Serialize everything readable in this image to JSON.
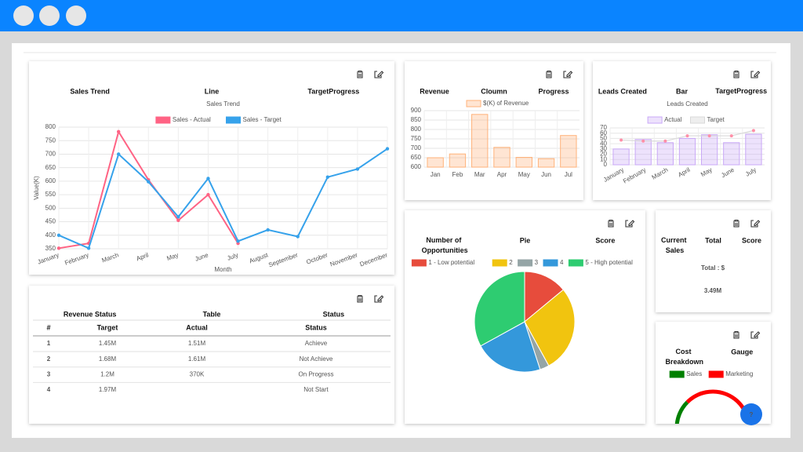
{
  "chart_data": [
    {
      "type": "line",
      "header": [
        "Sales Trend",
        "Line",
        "TargetProgress"
      ],
      "title": "Sales Trend",
      "y_label": "Value(K)",
      "x_label": "Month",
      "categories": [
        "January",
        "February",
        "March",
        "April",
        "May",
        "June",
        "July",
        "August",
        "September",
        "October",
        "November",
        "December"
      ],
      "series": [
        {
          "name": "Sales - Actual",
          "color": "#ff6384",
          "values": [
            352,
            370,
            783,
            605,
            455,
            550,
            370,
            null,
            null,
            null,
            null,
            null
          ]
        },
        {
          "name": "Sales - Target",
          "color": "#36a2eb",
          "values": [
            400,
            352,
            700,
            598,
            468,
            610,
            378,
            420,
            395,
            615,
            645,
            720
          ]
        }
      ],
      "ylim": [
        350,
        800
      ],
      "yticks": [
        350,
        400,
        450,
        500,
        550,
        600,
        650,
        700,
        750,
        800
      ],
      "grid": true
    },
    {
      "type": "bar",
      "header": [
        "Revenue",
        "Cloumn",
        "Progress"
      ],
      "categories": [
        "Jan",
        "Feb",
        "Mar",
        "Apr",
        "May",
        "Jun",
        "Jul"
      ],
      "series": [
        {
          "name": "$(K) of Revenue",
          "color": "#ffb27a",
          "values": [
            650,
            670,
            880,
            705,
            652,
            645,
            768
          ]
        }
      ],
      "ylim": [
        600,
        900
      ],
      "yticks": [
        600,
        650,
        700,
        750,
        800,
        850,
        900
      ],
      "grid": true
    },
    {
      "type": "bar",
      "header": [
        "Leads Created",
        "Bar",
        "TargetProgress"
      ],
      "title": "Leads Created",
      "categories": [
        "January",
        "February",
        "March",
        "April",
        "May",
        "June",
        "July"
      ],
      "series": [
        {
          "name": "Actual",
          "color": "#c9a8f7",
          "values": [
            30,
            48,
            42,
            50,
            57,
            42,
            58
          ]
        },
        {
          "name": "Target",
          "color": "#d9d9d9",
          "point_color": "#ff8fa8",
          "line": true,
          "values": [
            47,
            45,
            45,
            55,
            55,
            55,
            65
          ]
        }
      ],
      "ylim": [
        0,
        70
      ],
      "yticks": [
        0,
        10,
        20,
        30,
        40,
        50,
        60,
        70
      ],
      "grid": true
    },
    {
      "type": "pie",
      "header": [
        "Number of Opportunities",
        "Pie",
        "Score"
      ],
      "categories": [
        "1 - Low potential",
        "2",
        "3",
        "4",
        "5 - High potential"
      ],
      "values": [
        14,
        28,
        3,
        22,
        33
      ],
      "colors": [
        "#e74c3c",
        "#f1c40f",
        "#95a5a6",
        "#3498db",
        "#2ecc71"
      ]
    },
    {
      "type": "gauge",
      "header": [
        "Cost Breakdown",
        "Gauge"
      ],
      "categories": [
        "Sales",
        "Marketing"
      ],
      "values": [
        25,
        75
      ],
      "colors": [
        "#008000",
        "#ff0000"
      ]
    }
  ],
  "table": {
    "header": [
      "Revenue Status",
      "Table",
      "Status"
    ],
    "columns": [
      "#",
      "Target",
      "Actual",
      "Status"
    ],
    "rows": [
      [
        "1",
        "1.45M",
        "1.51M",
        "Achieve"
      ],
      [
        "2",
        "1.68M",
        "1.61M",
        "Not Achieve"
      ],
      [
        "3",
        "1.2M",
        "370K",
        "On Progress"
      ],
      [
        "4",
        "1.97M",
        null,
        "Not Start"
      ]
    ],
    "status_colors": [
      "#2e9e2e",
      "#ff2a2a",
      "#2a2ae8",
      "#777777"
    ]
  },
  "total": {
    "header": [
      "Current Sales",
      "Total",
      "Score"
    ],
    "text": [
      "Total : $",
      "3.49M"
    ]
  },
  "help": "?"
}
